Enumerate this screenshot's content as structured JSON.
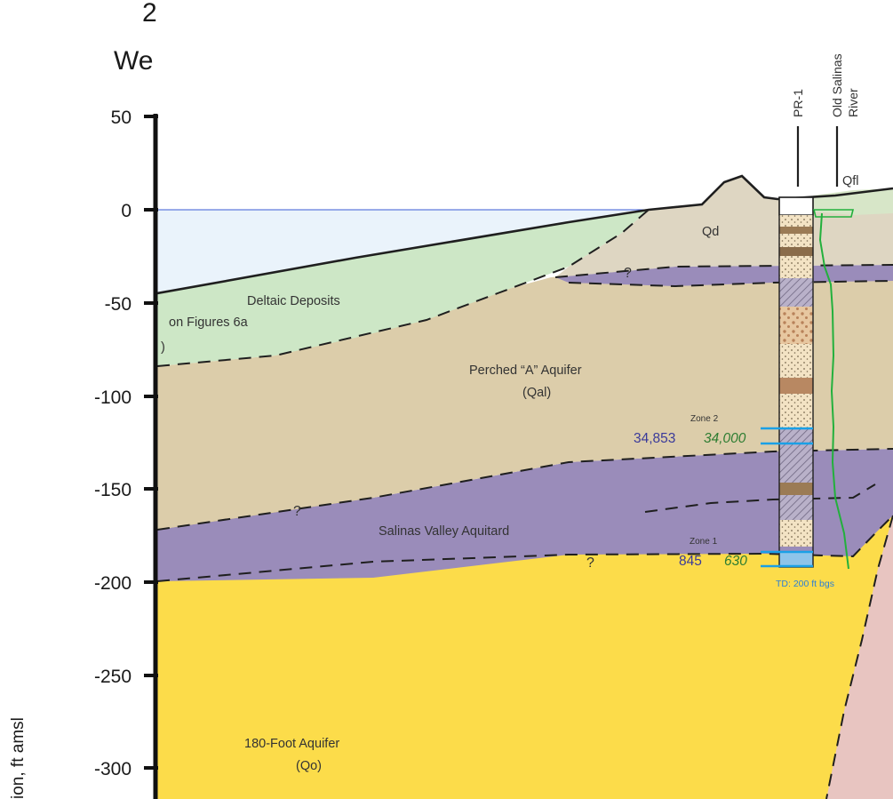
{
  "title": {
    "line1": "2",
    "line2": "We"
  },
  "axis": {
    "ticks": [
      "50",
      "0",
      "-50",
      "-100",
      "-150",
      "-200",
      "-250",
      "-300"
    ],
    "label": "ion, ft amsl"
  },
  "units": {
    "deltaic": "Deltaic Deposits",
    "perched": "Perched “A” Aquifer",
    "perched_code": "(Qal)",
    "aquitard": "Salinas Valley Aquitard",
    "foot180": "180-Foot Aquifer",
    "foot180_code": "(Qo)",
    "dune": "Qd",
    "floodplain": "Qfl"
  },
  "left_fragments": {
    "figures": "on Figures 6a",
    "paren": ")"
  },
  "well": {
    "name": "PR-1",
    "river": [
      "Old Salinas",
      "River"
    ],
    "td": "TD: 200 ft bgs"
  },
  "zones": [
    {
      "label": "Zone 2",
      "value_blue": "34,853",
      "value_green": "34,000"
    },
    {
      "label": "Zone 1",
      "value_blue": "845",
      "value_green": "630"
    }
  ],
  "question_mark": "?",
  "colors": {
    "water": "#eaf3fb",
    "deltaic": "#cde7c6",
    "dune": "#ded6c2",
    "perched": "#dccdaa",
    "aquitard": "#9a8cba",
    "aquifer180": "#fcdc4a",
    "pink": "#e8c5c1",
    "zone_line": "#1aa0e6",
    "salinity_line": "#22b03c",
    "conc_blue": "#3a3a9a",
    "conc_green": "#2e7d32"
  }
}
